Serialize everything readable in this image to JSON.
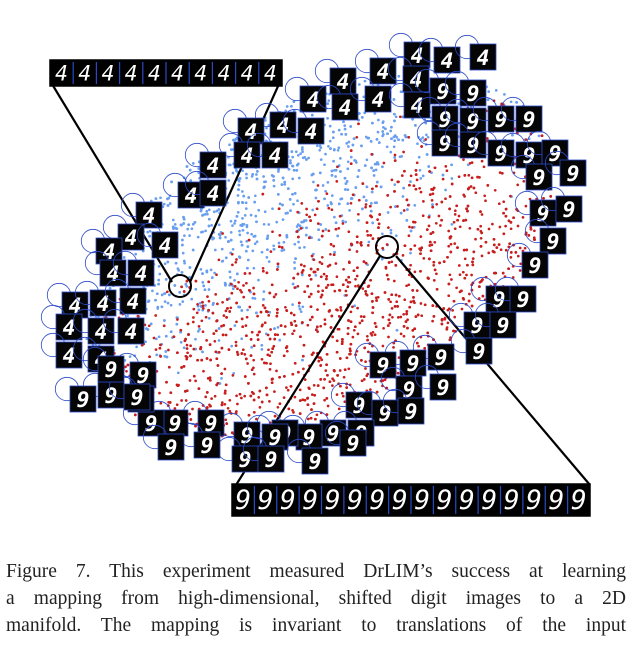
{
  "figure": {
    "type": "scatter",
    "colors": {
      "class_4": "#6a9ff0",
      "class_9": "#c81e1e",
      "thumb_bg": "#050505",
      "thumb_border": "#2a49c8",
      "digit": "#ffffff"
    },
    "thumbnail_digits": [
      "4",
      "9"
    ],
    "strip_top_digits": [
      "4",
      "4",
      "4",
      "4",
      "4",
      "4",
      "4",
      "4",
      "4",
      "4"
    ],
    "strip_bottom_digits": [
      "9",
      "9",
      "9",
      "9",
      "9",
      "9",
      "9",
      "9",
      "9",
      "9",
      "9",
      "9",
      "9",
      "9",
      "9",
      "9"
    ],
    "zoom_markers": [
      {
        "name": "zoom-circle-4",
        "class": "4"
      },
      {
        "name": "zoom-circle-9",
        "class": "9"
      }
    ]
  },
  "chart_data": {
    "type": "scatter",
    "series": [
      {
        "values": []
      },
      {
        "values": []
      }
    ]
  },
  "caption": {
    "lines": [
      "Figure 7. This experiment measured DrLIM’s success at learning",
      "a mapping from high-dimensional, shifted digit images to a 2D",
      "manifold.  The mapping is invariant to translations of the input"
    ]
  }
}
